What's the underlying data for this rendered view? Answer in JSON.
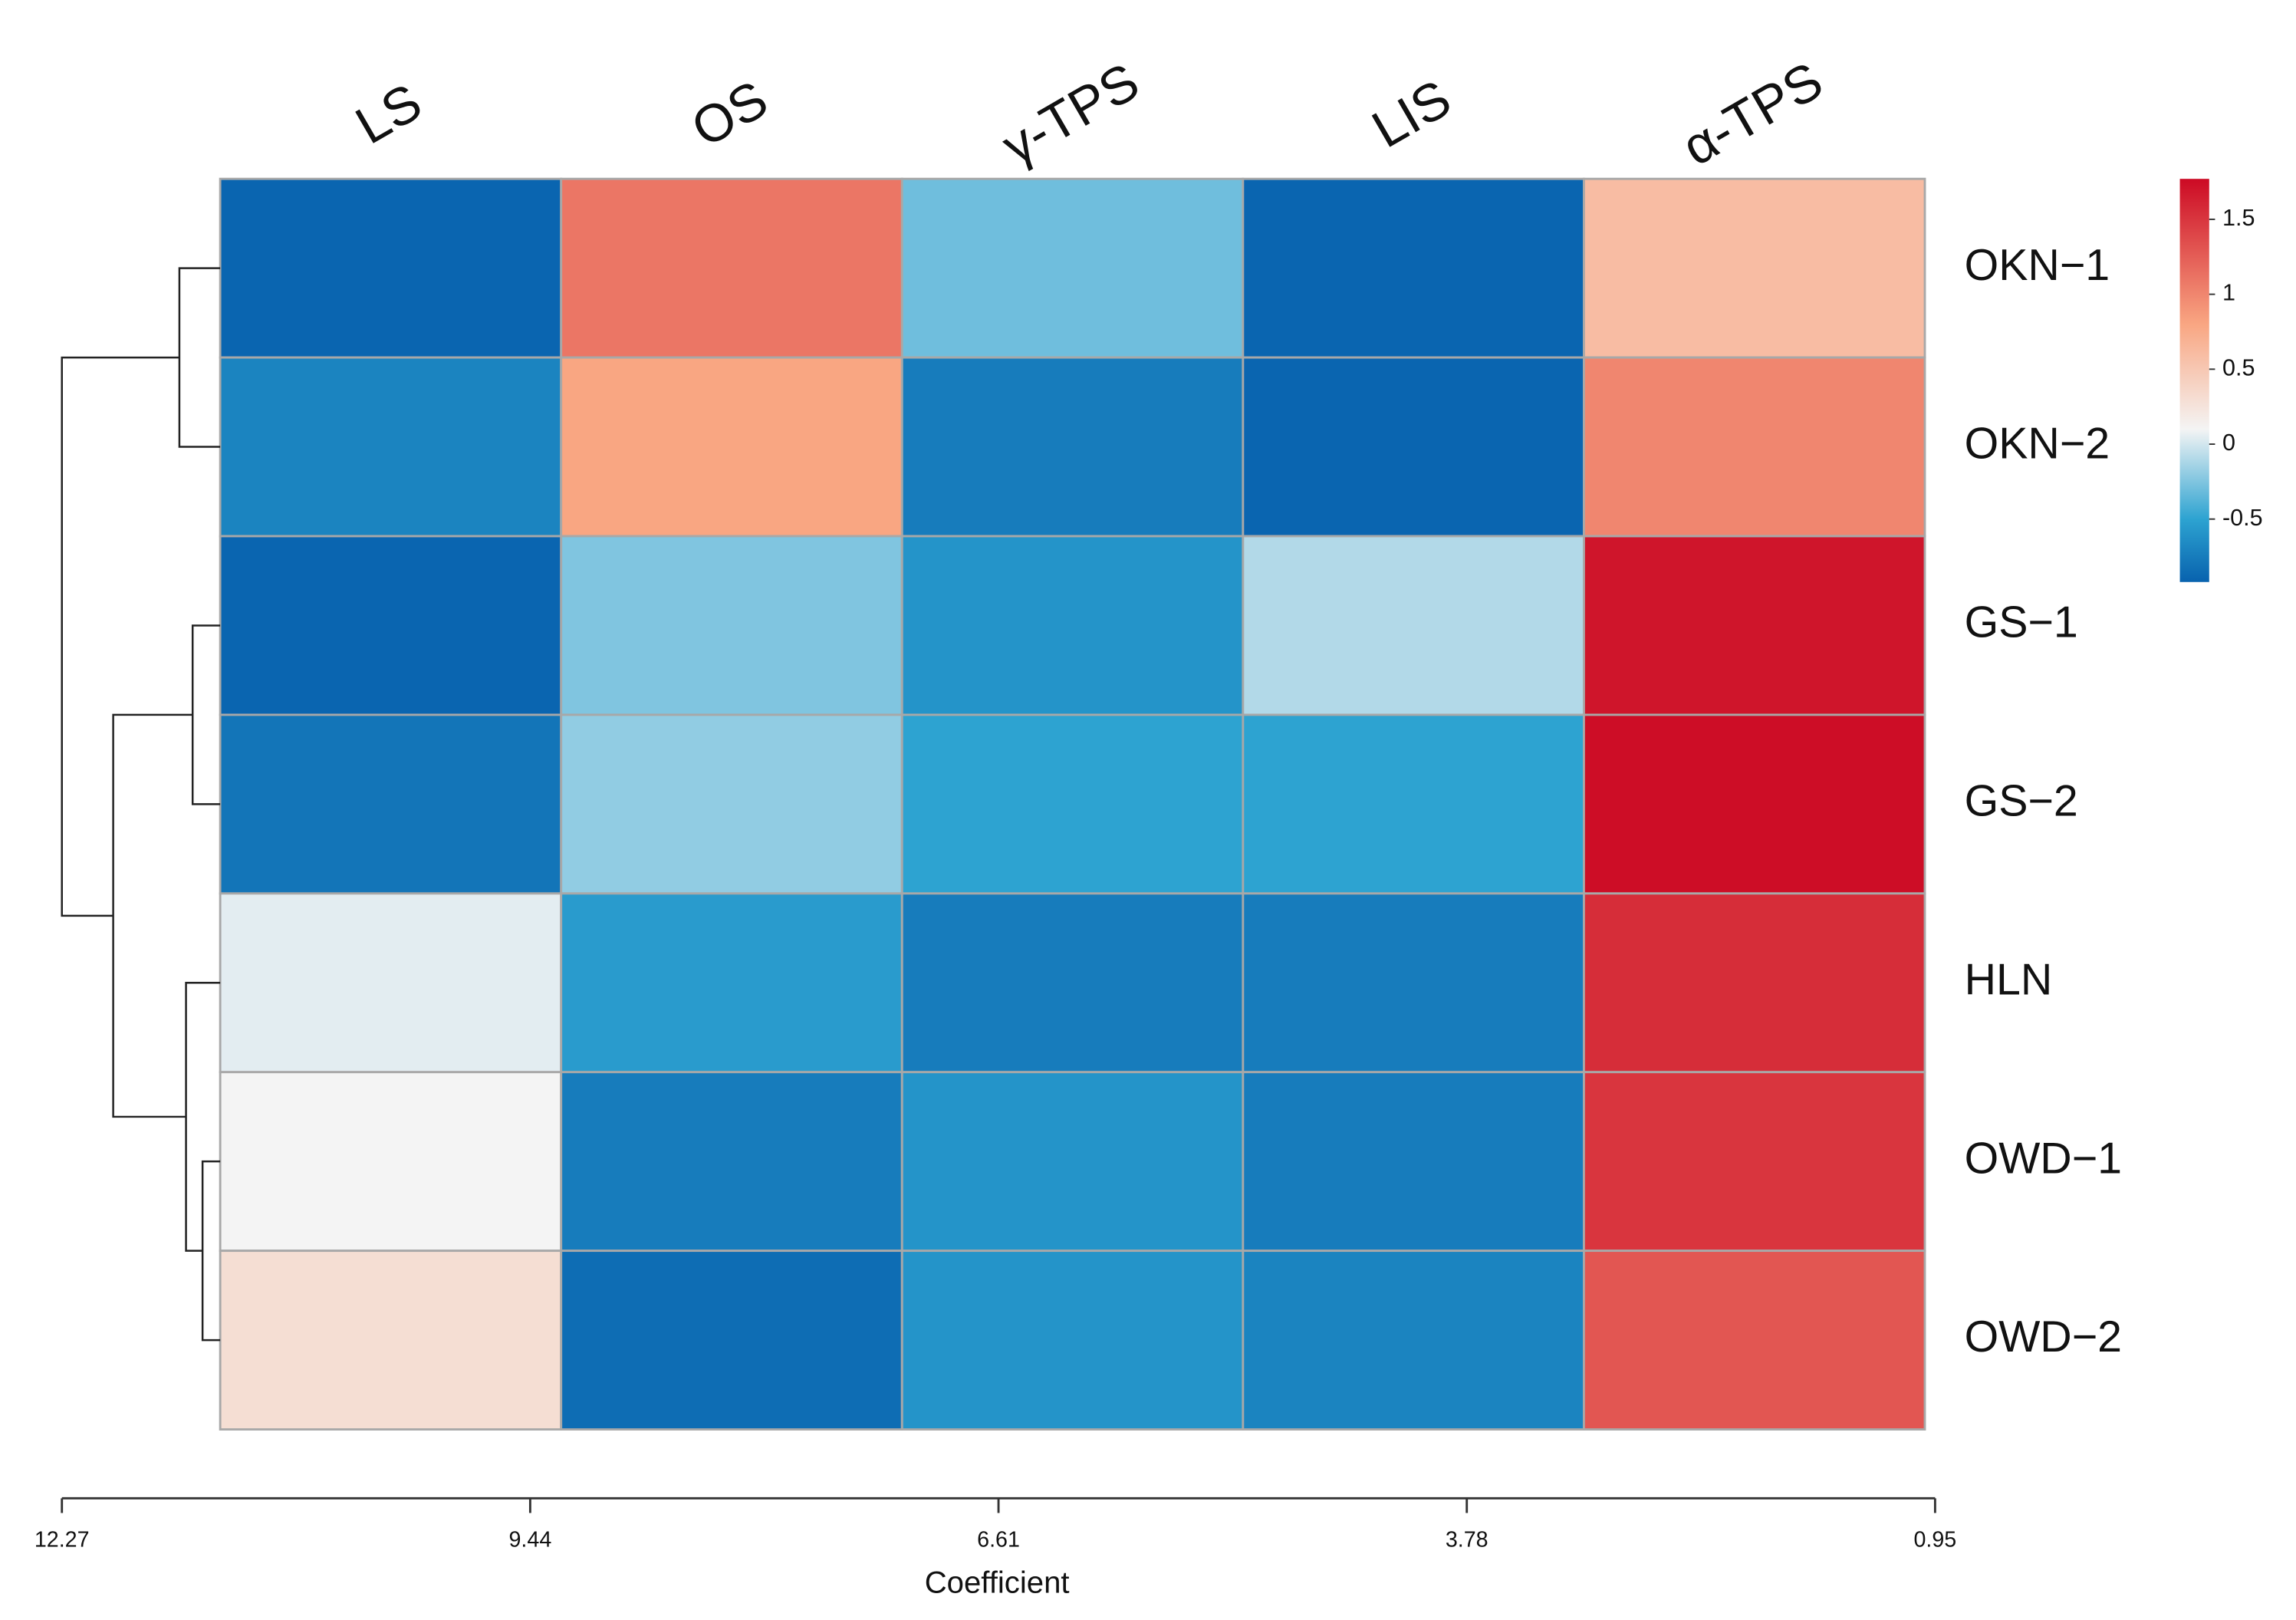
{
  "chart_data": {
    "type": "heatmap",
    "columns": [
      "LS",
      "OS",
      "γ-TPS",
      "LIS",
      "α-TPS"
    ],
    "rows": [
      "OKN−1",
      "OKN−2",
      "GS−1",
      "GS−2",
      "HLN",
      "OWD−1",
      "OWD−2"
    ],
    "values": [
      [
        -0.9,
        1.1,
        -0.3,
        -0.9,
        0.6
      ],
      [
        -0.7,
        0.8,
        -0.75,
        -0.9,
        1.0
      ],
      [
        -0.9,
        -0.25,
        -0.6,
        -0.1,
        1.7
      ],
      [
        -0.8,
        -0.2,
        -0.5,
        -0.5,
        1.75
      ],
      [
        0.05,
        -0.55,
        -0.75,
        -0.75,
        1.55
      ],
      [
        0.1,
        -0.75,
        -0.6,
        -0.75,
        1.5
      ],
      [
        0.3,
        -0.85,
        -0.6,
        -0.7,
        1.3
      ]
    ],
    "clim": [
      -0.92,
      1.77
    ],
    "cticks": [
      -0.5,
      0,
      0.5,
      1,
      1.5
    ],
    "colorscale": [
      {
        "value": -0.92,
        "color": "#0862ae"
      },
      {
        "value": -0.5,
        "color": "#2da3d1"
      },
      {
        "value": 0.1,
        "color": "#f4f4f4"
      },
      {
        "value": 0.8,
        "color": "#f9a682"
      },
      {
        "value": 1.77,
        "color": "#cc0a24"
      }
    ],
    "dendrogram": [
      {
        "left": 0,
        "right": 1,
        "height": 11.56
      },
      {
        "left": 2,
        "right": 3,
        "height": 11.48
      },
      {
        "left": 5,
        "right": 6,
        "height": 11.42
      },
      {
        "left": 4,
        "right": 9,
        "height": 11.52
      },
      {
        "left": 8,
        "right": 10,
        "height": 11.96
      },
      {
        "left": 7,
        "right": 11,
        "height": 12.27
      }
    ],
    "xlabel": "Coefficient",
    "xlim": [
      12.27,
      0.95
    ],
    "xticks": [
      12.27,
      9.44,
      6.61,
      3.78,
      0.95
    ]
  }
}
